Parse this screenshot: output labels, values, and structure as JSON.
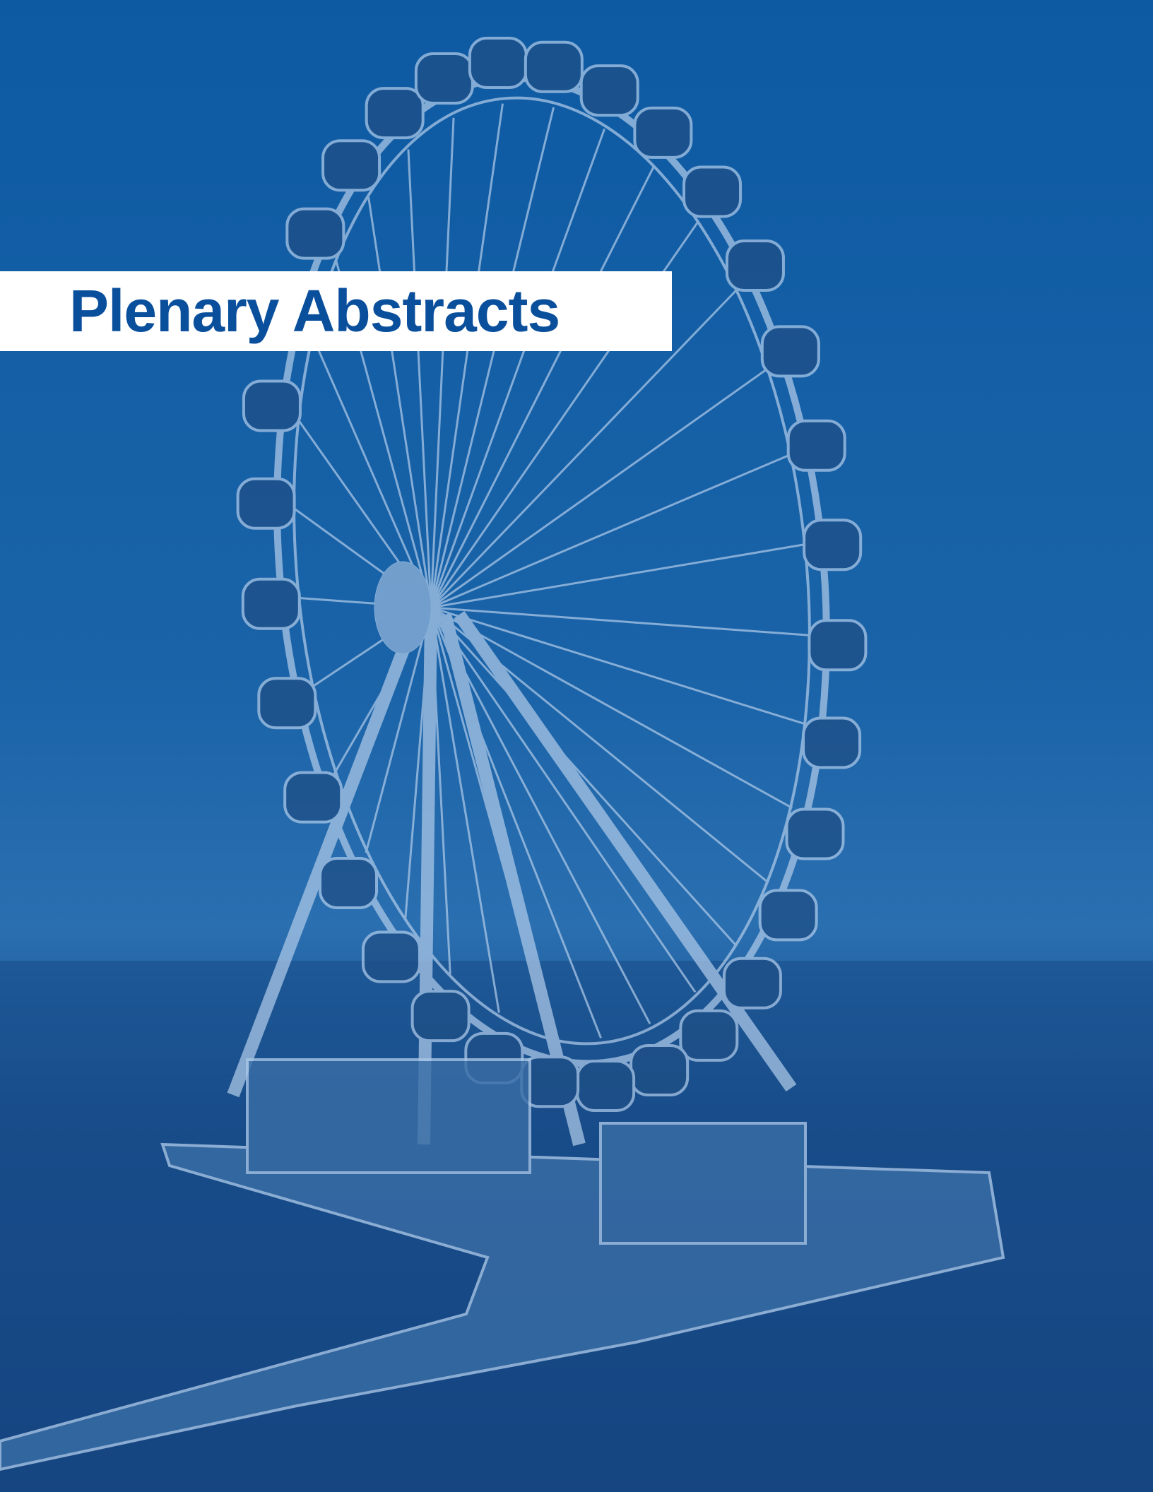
{
  "cover": {
    "title": "Plenary Abstracts"
  }
}
